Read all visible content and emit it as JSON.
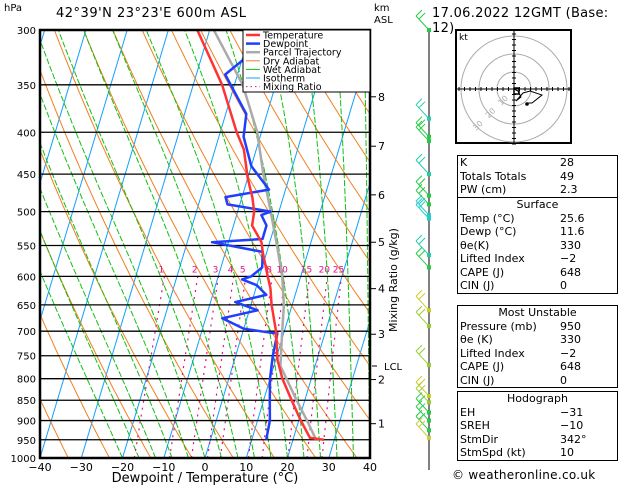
{
  "header": {
    "pressure_unit": "hPa",
    "location": "42°39'N  23°23'E  600m  ASL",
    "datetime": "17.06.2022  12GMT  (Base: 12)",
    "km_label": "km",
    "asl_label": "ASL"
  },
  "legend": [
    {
      "label": "Temperature",
      "color": "#ff3333",
      "style": "solid"
    },
    {
      "label": "Dewpoint",
      "color": "#1f3fff",
      "style": "solid"
    },
    {
      "label": "Parcel Trajectory",
      "color": "#aaaaaa",
      "style": "solid"
    },
    {
      "label": "Dry Adiabat",
      "color": "#f08020",
      "style": "solid"
    },
    {
      "label": "Wet Adiabat",
      "color": "#10c010",
      "style": "solid"
    },
    {
      "label": "Isotherm",
      "color": "#10a0ff",
      "style": "solid"
    },
    {
      "label": "Mixing Ratio",
      "color": "#e0108c",
      "style": "dotted"
    }
  ],
  "chart_data": {
    "type": "line",
    "title": "Skew-T log-P diagram",
    "xlabel": "Dewpoint / Temperature (°C)",
    "ylabel": "hPa",
    "right_axis_label": "Mixing Ratio (g/kg)",
    "xlim": [
      -40,
      40
    ],
    "ylim": [
      1000,
      300
    ],
    "x_ticks": [
      -40,
      -30,
      -20,
      -10,
      0,
      10,
      20,
      30,
      40
    ],
    "x_tick_labels": [
      "−40",
      "−30",
      "−20",
      "−10",
      "0",
      "10",
      "20",
      "30",
      "40"
    ],
    "pressure_levels": [
      300,
      350,
      400,
      450,
      500,
      550,
      600,
      650,
      700,
      750,
      800,
      850,
      900,
      950,
      1000
    ],
    "height_km_ticks": [
      {
        "km": 1,
        "p": 908
      },
      {
        "km": 2,
        "p": 802
      },
      {
        "km": 3,
        "p": 706
      },
      {
        "km": 4,
        "p": 621
      },
      {
        "km": 5,
        "p": 545
      },
      {
        "km": 6,
        "p": 477
      },
      {
        "km": 7,
        "p": 416
      },
      {
        "km": 8,
        "p": 362
      }
    ],
    "lcl": {
      "label": "LCL",
      "p": 772
    },
    "mixing_ratio_labels": [
      "1",
      "2",
      "3",
      "4",
      "5",
      "8",
      "10",
      "15",
      "20",
      "25"
    ],
    "mixing_ratio_values": [
      1,
      2,
      3,
      4,
      5,
      8,
      10,
      15,
      20,
      25
    ],
    "series": [
      {
        "name": "Temperature",
        "points": [
          [
            950,
            27.5
          ],
          [
            945,
            24
          ],
          [
            900,
            20.5
          ],
          [
            850,
            16.8
          ],
          [
            800,
            13
          ],
          [
            760,
            10.5
          ],
          [
            700,
            8
          ],
          [
            650,
            5
          ],
          [
            620,
            3.5
          ],
          [
            600,
            2
          ],
          [
            560,
            -1
          ],
          [
            545,
            -2
          ],
          [
            520,
            -5.5
          ],
          [
            500,
            -6
          ],
          [
            480,
            -7.5
          ],
          [
            455,
            -10
          ],
          [
            420,
            -13
          ],
          [
            400,
            -16
          ],
          [
            350,
            -23
          ],
          [
            300,
            -33
          ]
        ]
      },
      {
        "name": "Dewpoint",
        "points": [
          [
            950,
            13.5
          ],
          [
            900,
            13
          ],
          [
            850,
            11.5
          ],
          [
            800,
            10
          ],
          [
            750,
            9
          ],
          [
            705,
            8.5
          ],
          [
            695,
            0
          ],
          [
            675,
            -6
          ],
          [
            660,
            2
          ],
          [
            645,
            -4
          ],
          [
            632,
            3
          ],
          [
            615,
            0
          ],
          [
            605,
            -4
          ],
          [
            600,
            -2
          ],
          [
            585,
            0
          ],
          [
            560,
            -1
          ],
          [
            545,
            -14
          ],
          [
            540,
            -2
          ],
          [
            520,
            -2
          ],
          [
            505,
            -4
          ],
          [
            500,
            -2
          ],
          [
            490,
            -13
          ],
          [
            480,
            -14
          ],
          [
            470,
            -4
          ],
          [
            440,
            -10
          ],
          [
            405,
            -14
          ],
          [
            380,
            -15
          ],
          [
            340,
            -23
          ],
          [
            300,
            -13
          ]
        ]
      },
      {
        "name": "Parcel Trajectory",
        "points": [
          [
            950,
            25.6
          ],
          [
            900,
            22
          ],
          [
            850,
            18
          ],
          [
            800,
            14
          ],
          [
            772,
            11.6
          ],
          [
            700,
            9.5
          ],
          [
            650,
            8
          ],
          [
            600,
            5.5
          ],
          [
            550,
            2
          ],
          [
            500,
            -2
          ],
          [
            450,
            -6.5
          ],
          [
            400,
            -11
          ],
          [
            350,
            -18
          ],
          [
            300,
            -29
          ]
        ]
      }
    ],
    "wind_barbs_note": "colored wind barbs along right axis",
    "grid": true
  },
  "hodograph": {
    "unit_label": "kt",
    "ring_labels": [
      "10",
      "20",
      "30"
    ]
  },
  "indices": {
    "top": [
      {
        "key": "K",
        "value": "28"
      },
      {
        "key": "Totals Totals",
        "value": "49"
      },
      {
        "key": "PW (cm)",
        "value": "2.3"
      }
    ],
    "surface": {
      "title": "Surface",
      "rows": [
        {
          "key": "Temp (°C)",
          "value": "25.6"
        },
        {
          "key": "Dewp (°C)",
          "value": "11.6"
        },
        {
          "key": "θe(K)",
          "value": "330"
        },
        {
          "key": "Lifted Index",
          "value": "−2"
        },
        {
          "key": "CAPE (J)",
          "value": "648"
        },
        {
          "key": "CIN (J)",
          "value": "0"
        }
      ]
    },
    "most_unstable": {
      "title": "Most Unstable",
      "rows": [
        {
          "key": "Pressure (mb)",
          "value": "950"
        },
        {
          "key": "θe (K)",
          "value": "330"
        },
        {
          "key": "Lifted Index",
          "value": "−2"
        },
        {
          "key": "CAPE (J)",
          "value": "648"
        },
        {
          "key": "CIN (J)",
          "value": "0"
        }
      ]
    },
    "hodograph": {
      "title": "Hodograph",
      "rows": [
        {
          "key": "EH",
          "value": "−31"
        },
        {
          "key": "SREH",
          "value": "−10"
        },
        {
          "key": "StmDir",
          "value": "342°"
        },
        {
          "key": "StmSpd (kt)",
          "value": "10"
        }
      ]
    }
  },
  "footer": {
    "copyright": "© weatheronline.co.uk"
  }
}
